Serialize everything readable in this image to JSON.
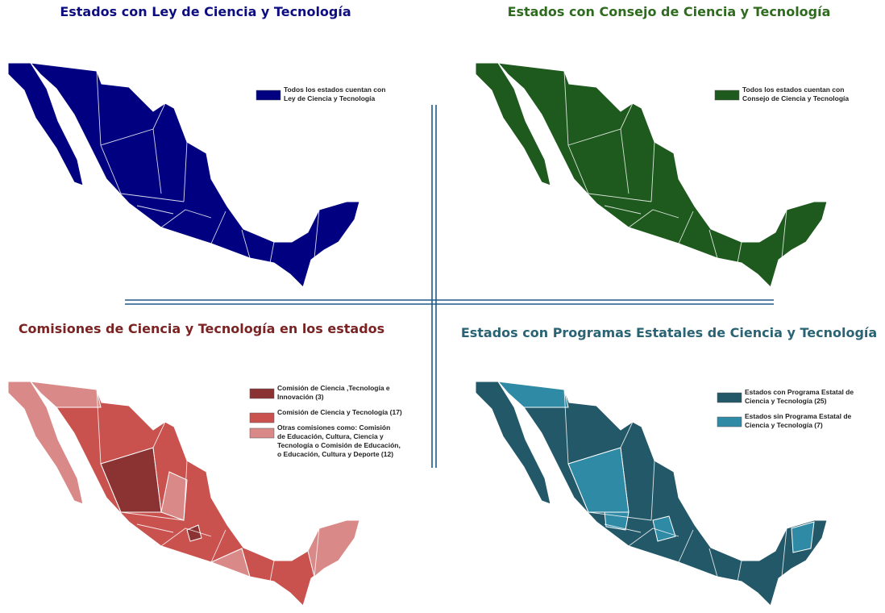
{
  "panels": [
    {
      "title": "Estados con Ley de Ciencia y Tecnología",
      "title_color": "#0d0d80",
      "legend": [
        {
          "lines": [
            "Todos los estados cuentan con",
            "Ley de Ciencia y Tecnología"
          ],
          "color": "#000080"
        }
      ]
    },
    {
      "title": "Estados con Consejo de Ciencia y Tecnología",
      "title_color": "#2f6b1f",
      "legend": [
        {
          "lines": [
            "Todos los estados cuentan con",
            "Consejo de Ciencia y Tecnología"
          ],
          "color": "#1e5a1e"
        }
      ]
    },
    {
      "title": "Comisiones de Ciencia y Tecnología en los estados",
      "title_color": "#7b2323",
      "legend": [
        {
          "lines": [
            "Comisión de Ciencia ,Tecnología e",
            "Innovación (3)"
          ],
          "color": "#8b3232"
        },
        {
          "lines": [
            "Comisión de Ciencia  y Tecnología (17)"
          ],
          "color": "#c9524f"
        },
        {
          "lines": [
            "Otras comisiones como:  Comisión",
            "de Educación, Cultura, Ciencia y",
            "Tecnología o Comisión de Educación,",
            "o Educación, Cultura y Deporte (12)"
          ],
          "color": "#d98a88"
        }
      ]
    },
    {
      "title": "Estados con Programas Estatales de Ciencia y Tecnología",
      "title_color": "#2a6373",
      "legend": [
        {
          "lines": [
            "Estados con Programa  Estatal de",
            "Ciencia y Tecnología (25)"
          ],
          "color": "#225868"
        },
        {
          "lines": [
            "Estados sin Programa  Estatal de",
            "Ciencia y Tecnología (7)"
          ],
          "color": "#2f8aa6"
        }
      ]
    }
  ]
}
